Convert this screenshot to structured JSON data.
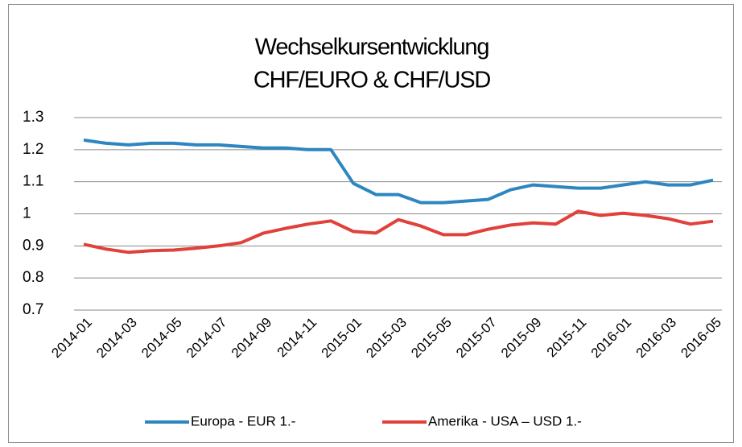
{
  "chart_data": {
    "type": "line",
    "title": [
      "Wechselkursentwicklung",
      "CHF/EURO & CHF/USD"
    ],
    "categories": [
      "2014-01",
      null,
      "2014-03",
      null,
      "2014-05",
      null,
      "2014-07",
      null,
      "2014-09",
      null,
      "2014-11",
      null,
      "2015-01",
      null,
      "2015-03",
      null,
      "2015-05",
      null,
      "2015-07",
      null,
      "2015-09",
      null,
      "2015-11",
      null,
      "2016-01",
      null,
      "2016-03",
      null,
      "2016-05"
    ],
    "series": [
      {
        "name": "Europa - EUR 1.-",
        "color": "#2e86c1",
        "values": [
          1.23,
          1.22,
          1.215,
          1.22,
          1.22,
          1.215,
          1.215,
          1.21,
          1.205,
          1.205,
          1.2,
          1.2,
          1.095,
          1.06,
          1.06,
          1.035,
          1.035,
          1.04,
          1.045,
          1.075,
          1.09,
          1.085,
          1.08,
          1.08,
          1.09,
          1.1,
          1.09,
          1.09,
          1.105
        ]
      },
      {
        "name": "Amerika - USA – USD 1.-",
        "color": "#e0413a",
        "values": [
          0.905,
          0.89,
          0.88,
          0.885,
          0.887,
          0.893,
          0.9,
          0.91,
          0.94,
          0.955,
          0.968,
          0.978,
          0.945,
          0.94,
          0.982,
          0.962,
          0.935,
          0.935,
          0.952,
          0.965,
          0.972,
          0.968,
          1.008,
          0.995,
          1.002,
          0.995,
          0.985,
          0.968,
          0.977
        ]
      }
    ],
    "ylim": [
      0.7,
      1.3
    ],
    "yticks": [
      0.7,
      0.8,
      0.9,
      1,
      1.1,
      1.2,
      1.3
    ],
    "grid": true,
    "legend": "bottom"
  }
}
